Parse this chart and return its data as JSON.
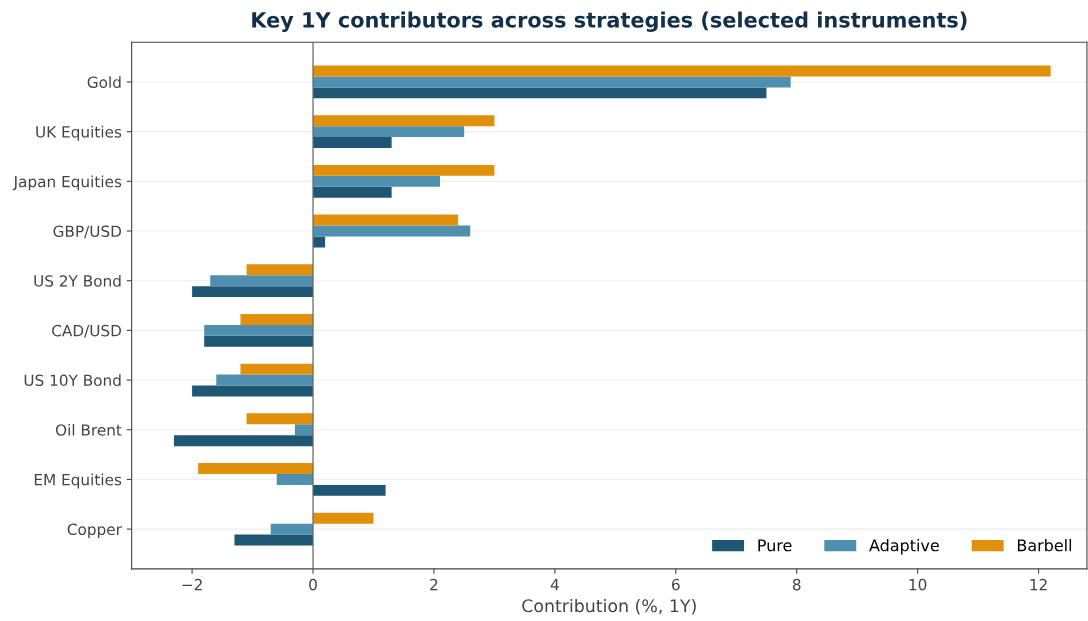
{
  "chart_data": {
    "type": "bar",
    "orientation": "horizontal",
    "title": "Key 1Y contributors across strategies (selected instruments)",
    "xlabel": "Contribution (%, 1Y)",
    "categories": [
      "Gold",
      "UK Equities",
      "Japan Equities",
      "GBP/USD",
      "US 2Y Bond",
      "CAD/USD",
      "US 10Y Bond",
      "Oil Brent",
      "EM Equities",
      "Copper"
    ],
    "series": [
      {
        "name": "Pure",
        "color": "#1f5673",
        "values": [
          7.5,
          1.3,
          1.3,
          0.2,
          -2.0,
          -1.8,
          -2.0,
          -2.3,
          1.2,
          -1.3
        ]
      },
      {
        "name": "Adaptive",
        "color": "#4f8fb0",
        "values": [
          7.9,
          2.5,
          2.1,
          2.6,
          -1.7,
          -1.8,
          -1.6,
          -0.3,
          -0.6,
          -0.7
        ]
      },
      {
        "name": "Barbell",
        "color": "#e0900a",
        "values": [
          12.2,
          3.0,
          3.0,
          2.4,
          -1.1,
          -1.2,
          -1.2,
          -1.1,
          -1.9,
          1.0
        ]
      }
    ],
    "xlim": [
      -3,
      12.8
    ],
    "xticks": [
      {
        "value": -2,
        "label": "−2"
      },
      0,
      2,
      4,
      6,
      8,
      10,
      12
    ],
    "ref_lines": [
      {
        "axis": "x",
        "value": 0,
        "color": "#666666"
      }
    ],
    "grid": "y",
    "legend": "bottom right"
  }
}
